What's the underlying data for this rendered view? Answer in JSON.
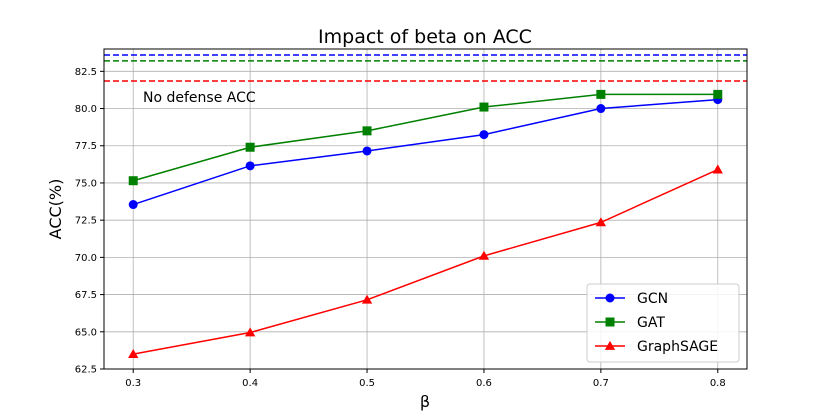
{
  "chart_data": {
    "type": "line",
    "title": "Impact of beta on ACC",
    "xlabel": "β",
    "ylabel": "ACC(%)",
    "x": [
      0.3,
      0.4,
      0.5,
      0.6,
      0.7,
      0.8
    ],
    "x_tick_labels": [
      "0.3",
      "0.4",
      "0.5",
      "0.6",
      "0.7",
      "0.8"
    ],
    "xlim": [
      0.275,
      0.825
    ],
    "ylim": [
      62.5,
      84.0
    ],
    "y_ticks": [
      62.5,
      65.0,
      67.5,
      70.0,
      72.5,
      75.0,
      77.5,
      80.0,
      82.5
    ],
    "y_tick_labels": [
      "62.5",
      "65.0",
      "67.5",
      "70.0",
      "72.5",
      "75.0",
      "77.5",
      "80.0",
      "82.5"
    ],
    "grid": true,
    "legend_position": "bottom-right",
    "series": [
      {
        "name": "GCN",
        "color": "#0000ff",
        "marker": "circle",
        "values": [
          73.55,
          76.15,
          77.15,
          78.25,
          80.0,
          80.6
        ]
      },
      {
        "name": "GAT",
        "color": "#008000",
        "marker": "square",
        "values": [
          75.15,
          77.4,
          78.5,
          80.1,
          80.95,
          80.95
        ]
      },
      {
        "name": "GraphSAGE",
        "color": "#ff0000",
        "marker": "triangle",
        "values": [
          63.5,
          64.95,
          67.15,
          70.1,
          72.35,
          75.9
        ]
      }
    ],
    "reference_lines": [
      {
        "name": "GCN no defense",
        "color": "#0000ff",
        "value": 83.6
      },
      {
        "name": "GAT no defense",
        "color": "#008000",
        "value": 83.2
      },
      {
        "name": "GraphSAGE no defense",
        "color": "#ff0000",
        "value": 81.85
      }
    ],
    "annotation": "No defense ACC"
  }
}
